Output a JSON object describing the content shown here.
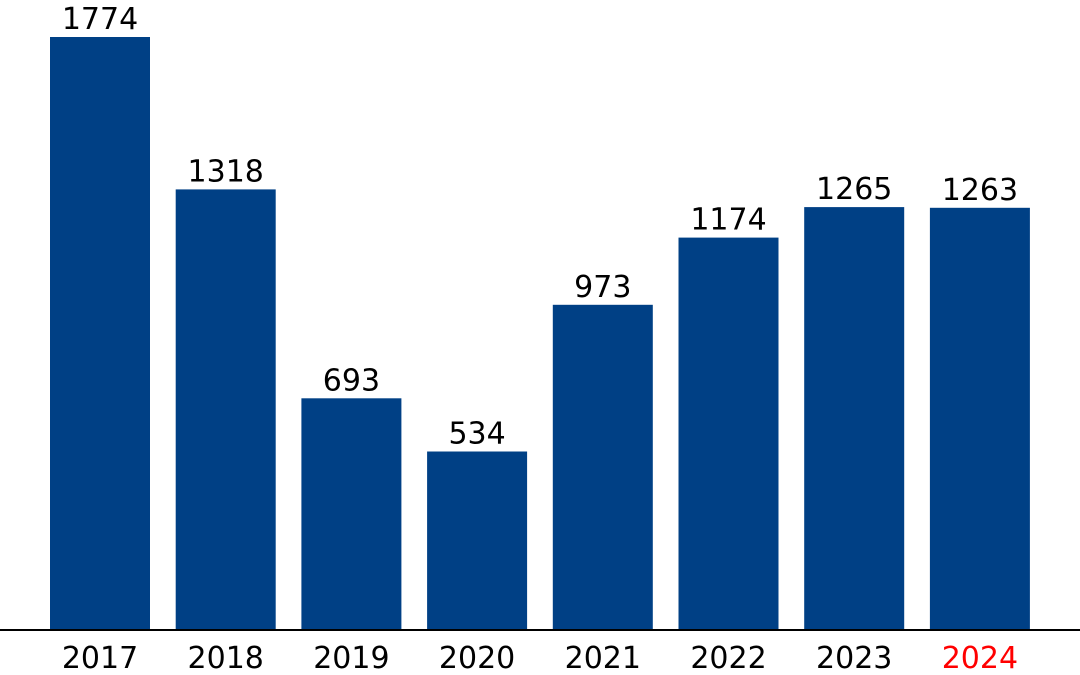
{
  "chart_data": {
    "type": "bar",
    "categories": [
      "2017",
      "2018",
      "2019",
      "2020",
      "2021",
      "2022",
      "2023",
      "2024"
    ],
    "values": [
      1774,
      1318,
      693,
      534,
      973,
      1174,
      1265,
      1263
    ],
    "title": "",
    "xlabel": "",
    "ylabel": "",
    "ylim": [
      0,
      1774
    ],
    "grid": false,
    "data_labels": true,
    "bar_color": "#004085",
    "axis_color": "#000000",
    "highlight_category": "2024",
    "highlight_label_color": "#ff0000"
  }
}
